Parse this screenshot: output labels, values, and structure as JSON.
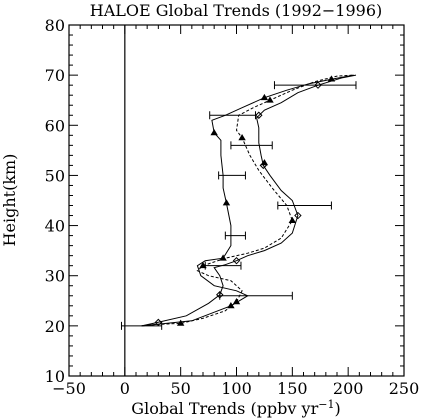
{
  "chart_data": {
    "type": "line",
    "title": "HALOE Global Trends (1992−1996)",
    "xlabel": "Global Trends (ppbv yr",
    "xlabel_sup": "−1",
    "xlabel_end": ")",
    "ylabel": "Height(km)",
    "xlim": [
      -50,
      250
    ],
    "ylim": [
      10,
      80
    ],
    "x_ticks": [
      -50,
      0,
      50,
      100,
      150,
      200,
      250
    ],
    "x_tick_labels": [
      "−50",
      "0",
      "50",
      "100",
      "150",
      "200",
      "250"
    ],
    "y_ticks": [
      10,
      20,
      30,
      40,
      50,
      60,
      70,
      80
    ],
    "y_tick_labels": [
      "10",
      "20",
      "30",
      "40",
      "50",
      "60",
      "70",
      "80"
    ],
    "zero_line_x": 0,
    "grid": false,
    "colors": {
      "axes": "#000000",
      "lines": "#000000"
    },
    "series": [
      {
        "style": "solid",
        "marker": "diamond",
        "points": [
          [
            15,
            20
          ],
          [
            30,
            20.7
          ],
          [
            55,
            22
          ],
          [
            75,
            24.5
          ],
          [
            85,
            26.2
          ],
          [
            88,
            28
          ],
          [
            85,
            30
          ],
          [
            80,
            31.6
          ],
          [
            90,
            32.2
          ],
          [
            100,
            33
          ],
          [
            110,
            34
          ],
          [
            125,
            35
          ],
          [
            140,
            36.5
          ],
          [
            150,
            38.5
          ],
          [
            155,
            42
          ],
          [
            150,
            45
          ],
          [
            140,
            47
          ],
          [
            130,
            50
          ],
          [
            124,
            52
          ],
          [
            122,
            54
          ],
          [
            120,
            56.5
          ],
          [
            120,
            59.5
          ],
          [
            118,
            61.5
          ],
          [
            125,
            63
          ],
          [
            140,
            64.5
          ],
          [
            155,
            66.5
          ],
          [
            173,
            68
          ],
          [
            195,
            69.5
          ],
          [
            207,
            70
          ]
        ],
        "marker_points": [
          [
            30,
            20.7
          ],
          [
            85,
            26.2
          ],
          [
            100,
            33
          ],
          [
            155,
            42
          ],
          [
            124,
            52
          ],
          [
            120,
            62
          ],
          [
            173,
            68
          ]
        ]
      },
      {
        "style": "dashed",
        "marker": "triangle",
        "points": [
          [
            15,
            20
          ],
          [
            30,
            20.3
          ],
          [
            50,
            20.5
          ],
          [
            70,
            21.5
          ],
          [
            90,
            23
          ],
          [
            100,
            24.8
          ],
          [
            105,
            27
          ],
          [
            95,
            29
          ],
          [
            75,
            30
          ],
          [
            65,
            31
          ],
          [
            70,
            32
          ],
          [
            90,
            33.5
          ],
          [
            110,
            34.5
          ],
          [
            125,
            35.5
          ],
          [
            140,
            37.5
          ],
          [
            150,
            41
          ],
          [
            145,
            44
          ],
          [
            132,
            47.5
          ],
          [
            120,
            51
          ],
          [
            112,
            54
          ],
          [
            108,
            56
          ],
          [
            105,
            57.5
          ],
          [
            100,
            59
          ],
          [
            102,
            62
          ],
          [
            115,
            63.5
          ],
          [
            130,
            65
          ],
          [
            150,
            67
          ],
          [
            170,
            68.7
          ],
          [
            190,
            69.8
          ],
          [
            205,
            70
          ]
        ],
        "marker_points": [
          [
            50,
            20.5
          ],
          [
            100,
            24.8
          ],
          [
            70,
            32
          ],
          [
            150,
            41
          ],
          [
            125,
            52.5
          ],
          [
            105,
            57.5
          ],
          [
            130,
            65
          ]
        ]
      },
      {
        "style": "solid",
        "marker": "triangle",
        "points": [
          [
            15,
            20
          ],
          [
            60,
            21
          ],
          [
            95,
            24
          ],
          [
            110,
            26
          ],
          [
            100,
            27
          ],
          [
            80,
            28
          ],
          [
            68,
            30
          ],
          [
            65,
            32
          ],
          [
            72,
            33
          ],
          [
            88,
            33.5
          ],
          [
            95,
            36
          ],
          [
            95,
            40
          ],
          [
            91,
            44.5
          ],
          [
            88,
            47.5
          ],
          [
            88,
            50
          ],
          [
            86,
            54
          ],
          [
            86,
            57
          ],
          [
            80,
            58.5
          ],
          [
            78,
            61
          ],
          [
            90,
            62
          ],
          [
            105,
            63.5
          ],
          [
            125,
            65.5
          ],
          [
            145,
            67
          ],
          [
            165,
            68.3
          ],
          [
            185,
            69.2
          ],
          [
            205,
            70
          ]
        ],
        "marker_points": [
          [
            95,
            24
          ],
          [
            88,
            33.5
          ],
          [
            91,
            44.5
          ],
          [
            80,
            58.5
          ],
          [
            125,
            65.5
          ],
          [
            185,
            69.2
          ]
        ]
      }
    ],
    "error_bars": [
      {
        "y": 20,
        "x": 0,
        "xmin": -3,
        "xmax": 33
      },
      {
        "y": 26,
        "x": 100,
        "xmin": 85,
        "xmax": 150
      },
      {
        "y": 32,
        "x": 100,
        "xmin": 72,
        "xmax": 104
      },
      {
        "y": 38,
        "x": 100,
        "xmin": 90,
        "xmax": 108
      },
      {
        "y": 44,
        "x": 150,
        "xmin": 137,
        "xmax": 185
      },
      {
        "y": 50,
        "x": 100,
        "xmin": 84,
        "xmax": 108
      },
      {
        "y": 56,
        "x": 100,
        "xmin": 95,
        "xmax": 132
      },
      {
        "y": 62,
        "x": 100,
        "xmin": 76,
        "xmax": 117
      },
      {
        "y": 68,
        "x": 150,
        "xmin": 134,
        "xmax": 207
      }
    ]
  }
}
